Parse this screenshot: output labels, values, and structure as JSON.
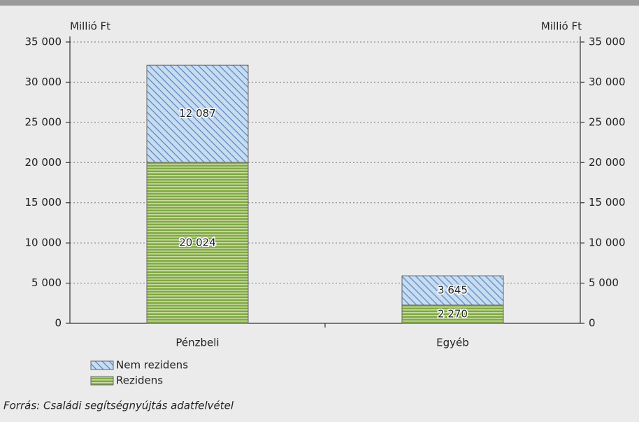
{
  "chart_data": {
    "type": "bar",
    "stacked": true,
    "y_label": "Millió Ft",
    "y2_label": "Millió Ft",
    "categories": [
      "Pénzbeli",
      "Egyéb"
    ],
    "series": [
      {
        "name": "Rezidens",
        "color": "#7fa844",
        "values": [
          20024,
          2270
        ],
        "value_labels": [
          "20 024",
          "2 270"
        ]
      },
      {
        "name": "Nem rezidens",
        "color": "#c7dcf1",
        "values": [
          12087,
          3645
        ],
        "value_labels": [
          "12 087",
          "3 645"
        ]
      }
    ],
    "ylim": [
      0,
      35000
    ],
    "yticks": [
      {
        "value": 0,
        "label": "0"
      },
      {
        "value": 5000,
        "label": "5 000"
      },
      {
        "value": 10000,
        "label": "10 000"
      },
      {
        "value": 15000,
        "label": "15 000"
      },
      {
        "value": 20000,
        "label": "20 000"
      },
      {
        "value": 25000,
        "label": "25 000"
      },
      {
        "value": 30000,
        "label": "30 000"
      },
      {
        "value": 35000,
        "label": "35 000"
      }
    ],
    "y2lim": [
      0,
      35000
    ],
    "y2ticks": [
      {
        "value": 0,
        "label": "0"
      },
      {
        "value": 5000,
        "label": "5 000"
      },
      {
        "value": 10000,
        "label": "10 000"
      },
      {
        "value": 15000,
        "label": "15 000"
      },
      {
        "value": 20000,
        "label": "20 000"
      },
      {
        "value": 25000,
        "label": "25 000"
      },
      {
        "value": 30000,
        "label": "30 000"
      },
      {
        "value": 35000,
        "label": "35 000"
      }
    ],
    "grid": true,
    "source": "Forrás: Családi segítségnyújtás adatfelvétel"
  }
}
